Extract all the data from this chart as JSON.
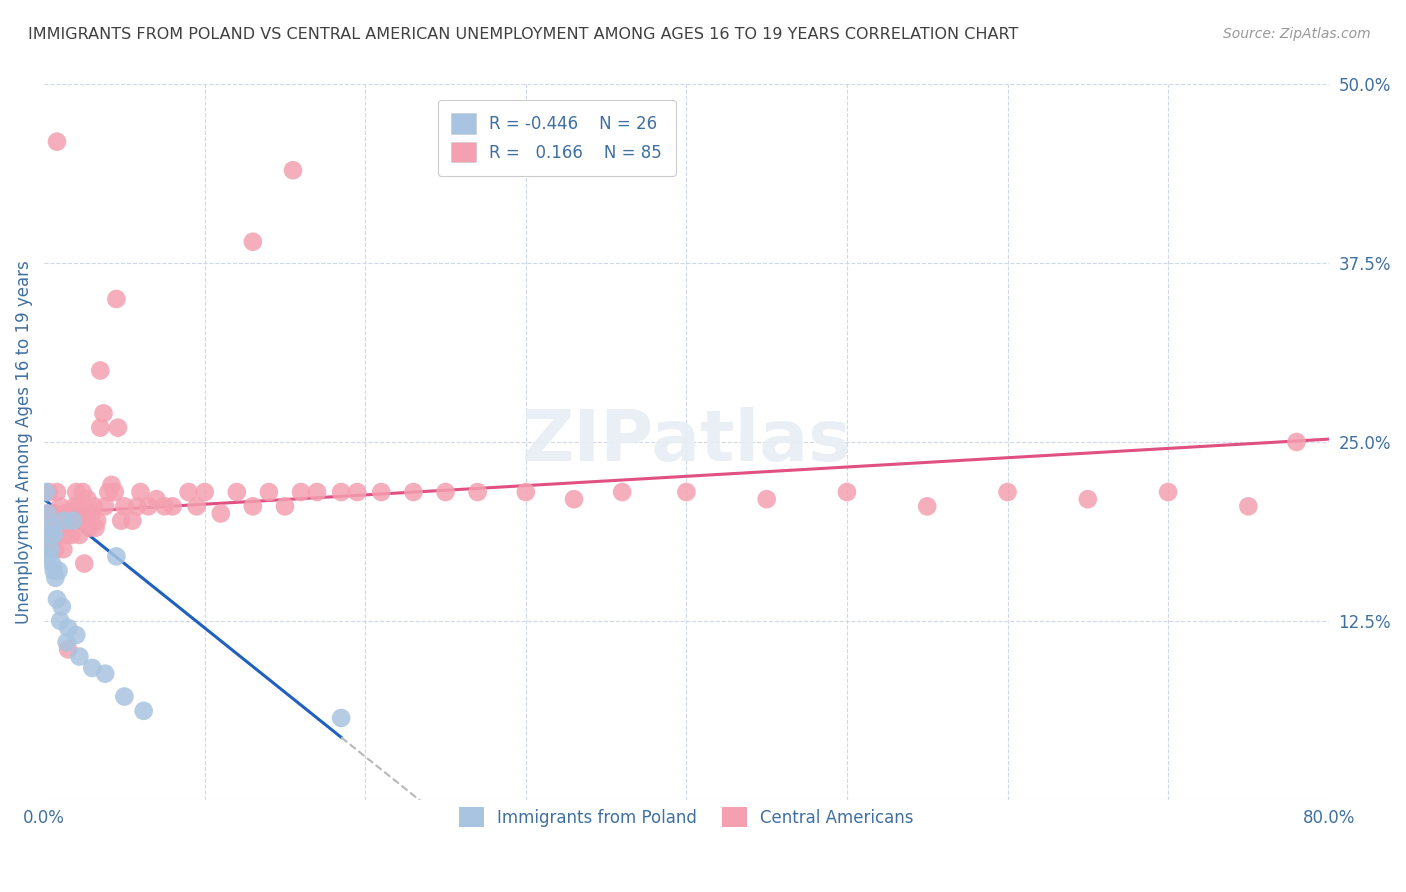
{
  "title": "IMMIGRANTS FROM POLAND VS CENTRAL AMERICAN UNEMPLOYMENT AMONG AGES 16 TO 19 YEARS CORRELATION CHART",
  "source": "Source: ZipAtlas.com",
  "ylabel": "Unemployment Among Ages 16 to 19 years",
  "xlim": [
    0.0,
    0.8
  ],
  "ylim": [
    0.0,
    0.5
  ],
  "yticks_right": [
    0.0,
    0.125,
    0.25,
    0.375,
    0.5
  ],
  "ytick_right_labels": [
    "",
    "12.5%",
    "25.0%",
    "37.5%",
    "50.0%"
  ],
  "poland_R": -0.446,
  "poland_N": 26,
  "central_R": 0.166,
  "central_N": 85,
  "legend_label_poland": "Immigrants from Poland",
  "legend_label_central": "Central Americans",
  "poland_color": "#a8c4e0",
  "central_color": "#f4a0b0",
  "poland_line_color": "#2060c0",
  "central_line_color": "#e05080",
  "dashed_line_color": "#b8b8b8",
  "background_color": "#ffffff",
  "grid_color": "#d0d8e8",
  "title_color": "#404040",
  "axis_label_color": "#4070a0",
  "poland_x": [
    0.001,
    0.002,
    0.003,
    0.003,
    0.004,
    0.005,
    0.005,
    0.006,
    0.006,
    0.007,
    0.008,
    0.009,
    0.01,
    0.011,
    0.012,
    0.014,
    0.015,
    0.018,
    0.02,
    0.022,
    0.03,
    0.038,
    0.045,
    0.05,
    0.062,
    0.185
  ],
  "poland_y": [
    0.215,
    0.2,
    0.185,
    0.17,
    0.175,
    0.19,
    0.165,
    0.185,
    0.16,
    0.155,
    0.14,
    0.16,
    0.125,
    0.135,
    0.195,
    0.11,
    0.12,
    0.195,
    0.115,
    0.1,
    0.092,
    0.088,
    0.17,
    0.072,
    0.062,
    0.057
  ],
  "central_x": [
    0.002,
    0.003,
    0.004,
    0.005,
    0.005,
    0.006,
    0.007,
    0.007,
    0.008,
    0.009,
    0.01,
    0.01,
    0.011,
    0.012,
    0.013,
    0.014,
    0.015,
    0.016,
    0.017,
    0.018,
    0.019,
    0.02,
    0.021,
    0.022,
    0.023,
    0.024,
    0.025,
    0.026,
    0.027,
    0.028,
    0.03,
    0.031,
    0.032,
    0.033,
    0.035,
    0.037,
    0.038,
    0.04,
    0.042,
    0.044,
    0.046,
    0.048,
    0.05,
    0.055,
    0.058,
    0.06,
    0.065,
    0.07,
    0.075,
    0.08,
    0.09,
    0.095,
    0.1,
    0.11,
    0.12,
    0.13,
    0.14,
    0.15,
    0.16,
    0.17,
    0.185,
    0.195,
    0.21,
    0.23,
    0.25,
    0.27,
    0.3,
    0.33,
    0.36,
    0.4,
    0.45,
    0.5,
    0.55,
    0.6,
    0.65,
    0.7,
    0.75,
    0.78,
    0.155,
    0.13,
    0.045,
    0.035,
    0.025,
    0.015,
    0.008
  ],
  "central_y": [
    0.2,
    0.215,
    0.185,
    0.175,
    0.19,
    0.2,
    0.185,
    0.175,
    0.215,
    0.195,
    0.195,
    0.205,
    0.19,
    0.175,
    0.2,
    0.185,
    0.195,
    0.2,
    0.185,
    0.195,
    0.205,
    0.215,
    0.205,
    0.185,
    0.2,
    0.215,
    0.195,
    0.2,
    0.21,
    0.19,
    0.2,
    0.205,
    0.19,
    0.195,
    0.26,
    0.27,
    0.205,
    0.215,
    0.22,
    0.215,
    0.26,
    0.195,
    0.205,
    0.195,
    0.205,
    0.215,
    0.205,
    0.21,
    0.205,
    0.205,
    0.215,
    0.205,
    0.215,
    0.2,
    0.215,
    0.205,
    0.215,
    0.205,
    0.215,
    0.215,
    0.215,
    0.215,
    0.215,
    0.215,
    0.215,
    0.215,
    0.215,
    0.21,
    0.215,
    0.215,
    0.21,
    0.215,
    0.205,
    0.215,
    0.21,
    0.215,
    0.205,
    0.25,
    0.44,
    0.39,
    0.35,
    0.3,
    0.165,
    0.105,
    0.46
  ]
}
